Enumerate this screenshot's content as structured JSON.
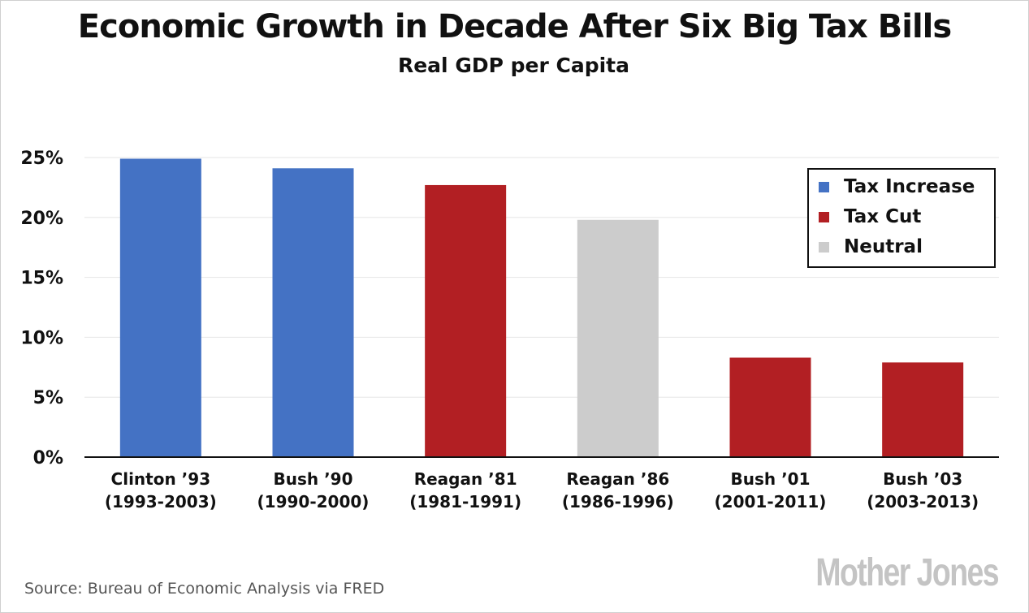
{
  "header": {
    "title": "Economic Growth in Decade After Six Big Tax Bills",
    "subtitle": "Real GDP per Capita"
  },
  "colors": {
    "tax_increase": "#4472c4",
    "tax_cut": "#b21f23",
    "neutral": "#cccccc",
    "gridline": "#e6e6e6"
  },
  "legend": {
    "items": [
      {
        "label": "Tax Increase",
        "color": "#4472c4"
      },
      {
        "label": "Tax Cut",
        "color": "#b21f23"
      },
      {
        "label": "Neutral",
        "color": "#cccccc"
      }
    ]
  },
  "footer": {
    "source": "Source: Bureau of Economic Analysis via FRED",
    "logo": "Mother Jones"
  },
  "chart_data": {
    "type": "bar",
    "title": "Economic Growth in Decade After Six Big Tax Bills",
    "subtitle": "Real GDP per Capita",
    "xlabel": "",
    "ylabel": "",
    "categories": [
      [
        "Clinton ’93",
        "(1993-2003)"
      ],
      [
        "Bush ’90",
        "(1990-2000)"
      ],
      [
        "Reagan ’81",
        "(1981-1991)"
      ],
      [
        "Reagan ’86",
        "(1986-1996)"
      ],
      [
        "Bush ’01",
        "(2001-2011)"
      ],
      [
        "Bush ’03",
        "(2003-2013)"
      ]
    ],
    "values": [
      24.9,
      24.1,
      22.7,
      19.8,
      8.3,
      7.9
    ],
    "bar_types": [
      "Tax Increase",
      "Tax Increase",
      "Tax Cut",
      "Neutral",
      "Tax Cut",
      "Tax Cut"
    ],
    "ylim": [
      0,
      25
    ],
    "yticks": [
      0,
      5,
      10,
      15,
      20,
      25
    ],
    "ytick_labels": [
      "0%",
      "5%",
      "10%",
      "15%",
      "20%",
      "25%"
    ],
    "grid": true,
    "legend_position": "top-right"
  }
}
